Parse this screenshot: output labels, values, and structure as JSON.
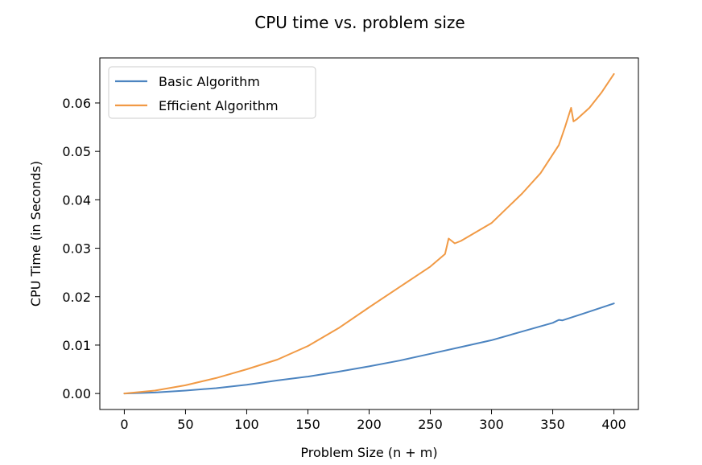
{
  "chart_data": {
    "type": "line",
    "title": "CPU time vs. problem size",
    "xlabel": "Problem Size (n + m)",
    "ylabel": "CPU Time (in Seconds)",
    "xlim": [
      -20,
      420
    ],
    "ylim": [
      -0.0033,
      0.0693
    ],
    "xticks": [
      0,
      50,
      100,
      150,
      200,
      250,
      300,
      350,
      400
    ],
    "xtick_labels": [
      "0",
      "50",
      "100",
      "150",
      "200",
      "250",
      "300",
      "350",
      "400"
    ],
    "yticks": [
      0.0,
      0.01,
      0.02,
      0.03,
      0.04,
      0.05,
      0.06
    ],
    "ytick_labels": [
      "0.00",
      "0.01",
      "0.02",
      "0.03",
      "0.04",
      "0.05",
      "0.06"
    ],
    "grid": false,
    "legend_position": "top-left",
    "series": [
      {
        "name": "Basic Algorithm",
        "color": "#4c84c0",
        "x": [
          0,
          25,
          50,
          75,
          100,
          125,
          150,
          175,
          200,
          225,
          250,
          275,
          300,
          325,
          350,
          355,
          358,
          375,
          400
        ],
        "y": [
          0.0,
          0.0002,
          0.0006,
          0.0011,
          0.0018,
          0.0027,
          0.0035,
          0.0045,
          0.0056,
          0.0068,
          0.0082,
          0.0096,
          0.011,
          0.0128,
          0.0146,
          0.0152,
          0.0151,
          0.0165,
          0.0186
        ]
      },
      {
        "name": "Efficient Algorithm",
        "color": "#f19a45",
        "x": [
          0,
          25,
          50,
          75,
          100,
          125,
          150,
          175,
          200,
          225,
          250,
          262,
          265,
          270,
          275,
          300,
          325,
          340,
          355,
          360,
          365,
          367,
          370,
          380,
          390,
          400
        ],
        "y": [
          0.0,
          0.0006,
          0.0017,
          0.0032,
          0.005,
          0.007,
          0.0098,
          0.0135,
          0.0178,
          0.022,
          0.0262,
          0.0288,
          0.032,
          0.031,
          0.0315,
          0.0352,
          0.0413,
          0.0455,
          0.0513,
          0.055,
          0.059,
          0.0562,
          0.0567,
          0.059,
          0.0622,
          0.066
        ]
      }
    ]
  }
}
